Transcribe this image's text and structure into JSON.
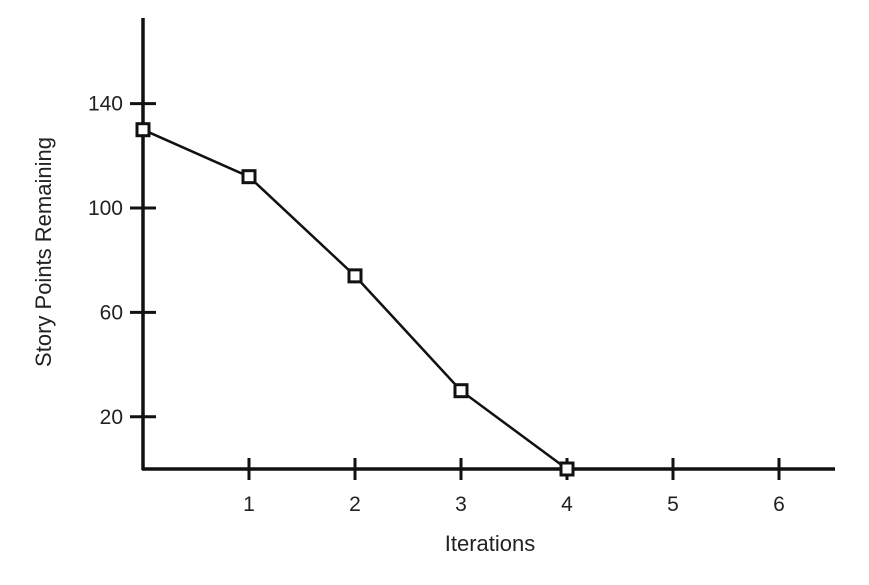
{
  "chart_data": {
    "type": "line",
    "title": "",
    "xlabel": "Iterations",
    "ylabel": "Story Points Remaining",
    "xlim": [
      0,
      6.5
    ],
    "ylim": [
      0,
      175
    ],
    "x_ticks": [
      1,
      2,
      3,
      4,
      5,
      6
    ],
    "x_tick_labels": [
      "1",
      "2",
      "3",
      "4",
      "5",
      "6"
    ],
    "y_ticks": [
      20,
      60,
      100,
      140
    ],
    "y_tick_labels": [
      "20",
      "60",
      "100",
      "140"
    ],
    "grid": false,
    "marker": "hollow-square",
    "series": [
      {
        "x": [
          0,
          1,
          2,
          3,
          4
        ],
        "values": [
          130,
          112,
          74,
          30,
          0
        ]
      }
    ]
  }
}
